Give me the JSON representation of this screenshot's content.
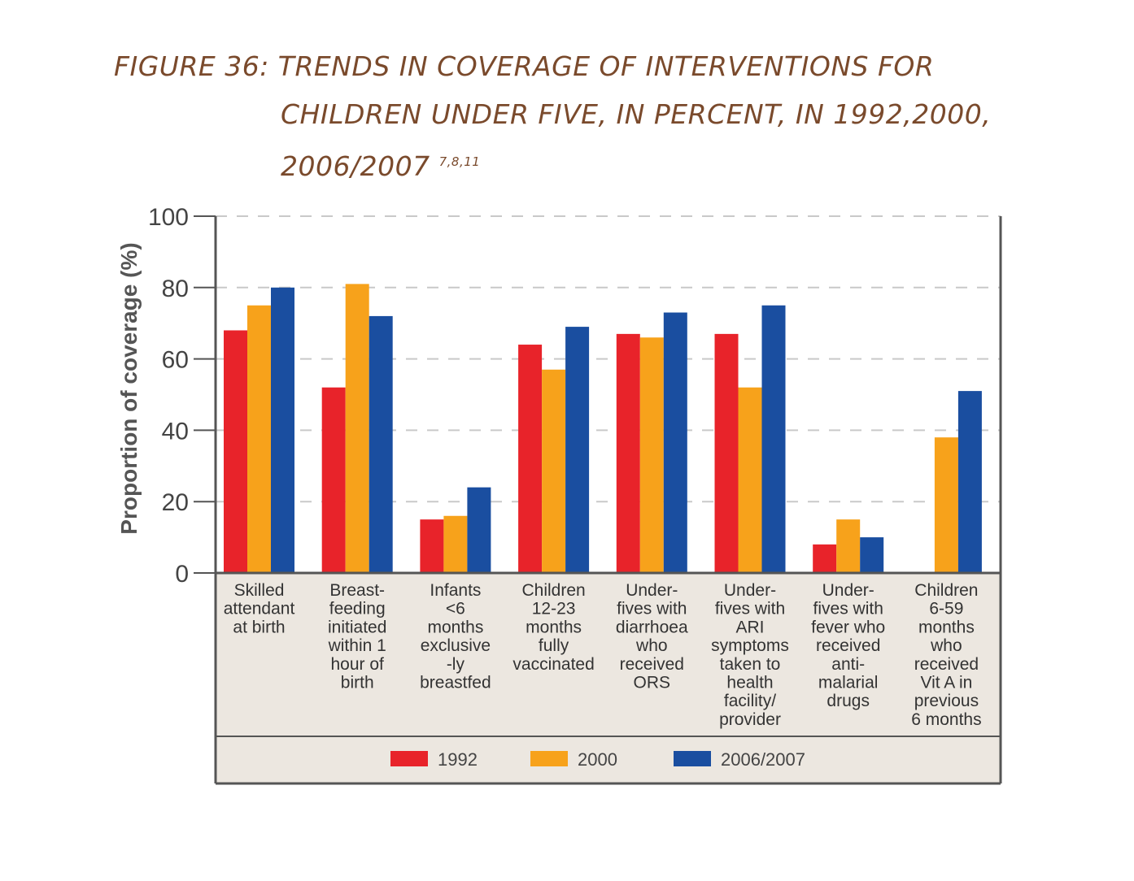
{
  "title": {
    "line1": "FIGURE 36: TRENDS IN COVERAGE OF INTERVENTIONS FOR",
    "line2": "CHILDREN UNDER FIVE, IN PERCENT, IN 1992,2000,",
    "line3": "2006/2007",
    "superscript": "7,8,11"
  },
  "chart_data": {
    "type": "bar",
    "ylabel": "Proportion of coverage (%)",
    "ylim": [
      0,
      100
    ],
    "yticks": [
      "0",
      "20",
      "40",
      "60",
      "80",
      "100"
    ],
    "grid": "dashed horizontal",
    "legend_position": "bottom",
    "categories": [
      [
        "Skilled",
        "attendant",
        "at birth"
      ],
      [
        "Breast-",
        "feeding",
        "initiated",
        "within 1",
        "hour of",
        "birth"
      ],
      [
        "Infants",
        "<6",
        "months",
        "exclusive",
        "-ly",
        "breastfed"
      ],
      [
        "Children",
        "12-23",
        "months",
        "fully",
        "vaccinated"
      ],
      [
        "Under-",
        "fives with",
        "diarrhoea",
        "who",
        "received",
        "ORS"
      ],
      [
        "Under-",
        "fives with",
        "ARI",
        "symptoms",
        "taken to",
        "health",
        "facility/",
        "provider"
      ],
      [
        "Under-",
        "fives with",
        "fever who",
        "received",
        "anti-",
        "malarial",
        "drugs"
      ],
      [
        "Children",
        "6-59",
        "months",
        "who",
        "received",
        "Vit A in",
        "previous",
        "6 months"
      ]
    ],
    "series": [
      {
        "name": "1992",
        "color": "#e8232a",
        "values": [
          68,
          52,
          15,
          64,
          67,
          67,
          8,
          null
        ]
      },
      {
        "name": "2000",
        "color": "#f7a21b",
        "values": [
          75,
          81,
          16,
          57,
          66,
          52,
          15,
          38
        ]
      },
      {
        "name": "2006/2007",
        "color": "#1a4ea0",
        "values": [
          80,
          72,
          24,
          69,
          73,
          75,
          10,
          51
        ]
      }
    ]
  }
}
